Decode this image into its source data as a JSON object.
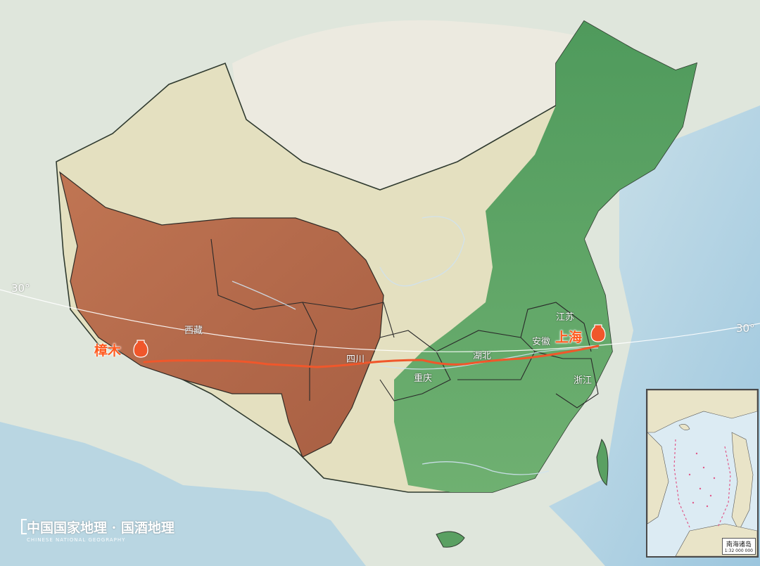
{
  "map": {
    "provinces": {
      "xizang": "西藏",
      "sichuan": "四川",
      "chongqing": "重庆",
      "hubei": "湖北",
      "anhui": "安徽",
      "jiangsu": "江苏",
      "zhejiang": "浙江"
    },
    "cities": {
      "start": "樟木",
      "end": "上海"
    },
    "latitude_label": "30°",
    "route_color": "#f0572b",
    "plateau_color": "#b86a4c",
    "lowland_green": "#5aa062",
    "desert_color": "#e6e1c8",
    "sea_color": "#b8d6e6"
  },
  "inset": {
    "title": "南海诸岛",
    "scale": "1:32 000 000"
  },
  "branding": {
    "title": "中国国家地理 · 国酒地理",
    "subtitle": "CHINESE NATIONAL GEOGRAPHY"
  }
}
